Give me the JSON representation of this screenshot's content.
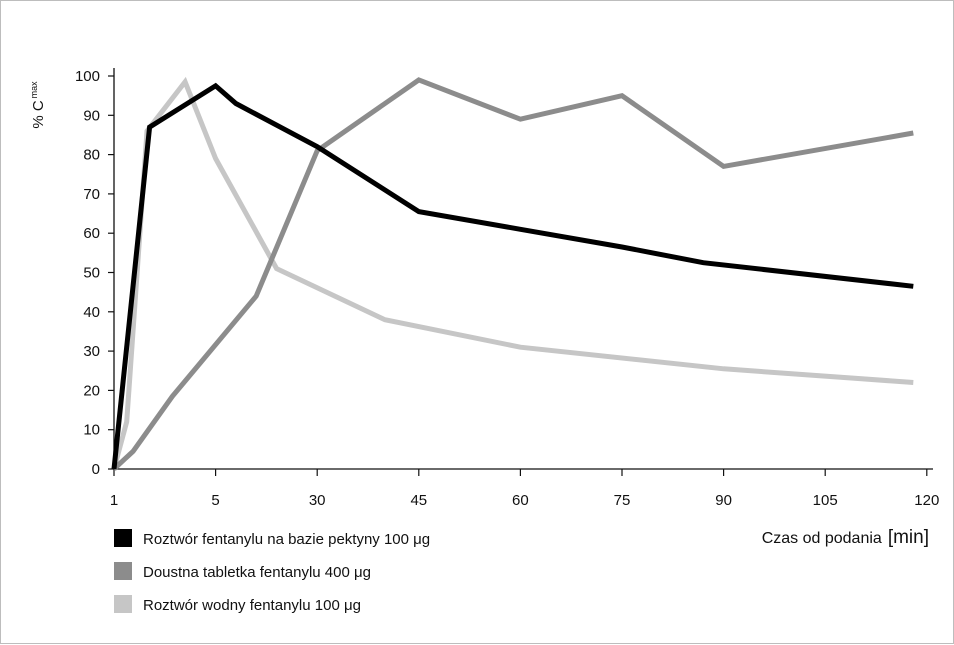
{
  "chart_data": {
    "type": "line",
    "title": "",
    "ylabel": {
      "prefix": "% C",
      "sub": "max"
    },
    "xlabel": {
      "text": "Czas od podania",
      "unit": "[min]"
    },
    "ylim": [
      0,
      100
    ],
    "x_ticks": [
      1,
      5,
      30,
      45,
      60,
      75,
      90,
      105,
      120
    ],
    "y_ticks": [
      0,
      10,
      20,
      30,
      40,
      50,
      60,
      70,
      80,
      90,
      100
    ],
    "grid": false,
    "legend_position": "bottom-left",
    "series": [
      {
        "name": "Roztwór fentanylu na bazie pektyny 100 μg",
        "color": "#000000",
        "points": [
          [
            1,
            0
          ],
          [
            2.4,
            87
          ],
          [
            5,
            97.5
          ],
          [
            10,
            93
          ],
          [
            30,
            82
          ],
          [
            45,
            65.5
          ],
          [
            60,
            61
          ],
          [
            75,
            56.5
          ],
          [
            87,
            52.5
          ],
          [
            118,
            46.5
          ]
        ]
      },
      {
        "name": "Doustna tabletka fentanylu 400 μg",
        "color": "#8c8c8c",
        "points": [
          [
            1,
            0
          ],
          [
            1.75,
            4.5
          ],
          [
            3.3,
            18.5
          ],
          [
            15,
            44
          ],
          [
            30,
            81
          ],
          [
            45,
            99
          ],
          [
            60,
            89
          ],
          [
            75,
            95
          ],
          [
            90,
            77
          ],
          [
            118,
            85.5
          ]
        ]
      },
      {
        "name": "Roztwór wodny fentanylu 100 μg",
        "color": "#c6c6c6",
        "points": [
          [
            1,
            0
          ],
          [
            1.5,
            12
          ],
          [
            2.3,
            86
          ],
          [
            3.8,
            98.5
          ],
          [
            5,
            79
          ],
          [
            20,
            51
          ],
          [
            40,
            38
          ],
          [
            60,
            31
          ],
          [
            90,
            25.5
          ],
          [
            118,
            22
          ]
        ]
      }
    ]
  }
}
